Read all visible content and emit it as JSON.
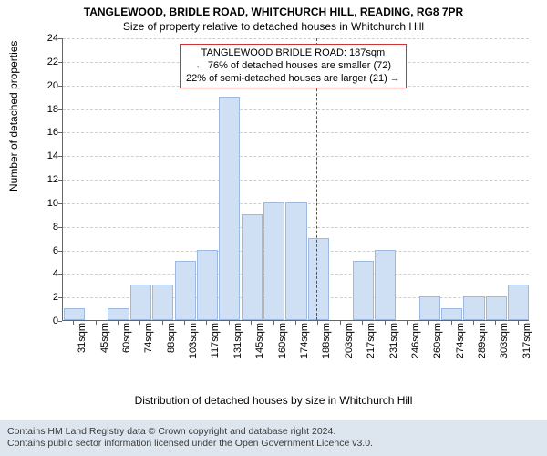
{
  "title": "TANGLEWOOD, BRIDLE ROAD, WHITCHURCH HILL, READING, RG8 7PR",
  "subtitle": "Size of property relative to detached houses in Whitchurch Hill",
  "ylabel": "Number of detached properties",
  "xlabel": "Distribution of detached houses by size in Whitchurch Hill",
  "chart": {
    "type": "histogram",
    "ylim": [
      0,
      24
    ],
    "ytick_step": 2,
    "yticks": [
      0,
      2,
      4,
      6,
      8,
      10,
      12,
      14,
      16,
      18,
      20,
      22,
      24
    ],
    "xticks": [
      "31sqm",
      "45sqm",
      "60sqm",
      "74sqm",
      "88sqm",
      "103sqm",
      "117sqm",
      "131sqm",
      "145sqm",
      "160sqm",
      "174sqm",
      "188sqm",
      "203sqm",
      "217sqm",
      "231sqm",
      "246sqm",
      "260sqm",
      "274sqm",
      "289sqm",
      "303sqm",
      "317sqm"
    ],
    "values": [
      1,
      0,
      1,
      3,
      3,
      5,
      6,
      19,
      9,
      10,
      10,
      7,
      0,
      5,
      6,
      0,
      2,
      1,
      2,
      2,
      3
    ],
    "bar_fill": "#d0e0f4",
    "bar_stroke": "#9fb8de",
    "grid_color": "#cfcfcf",
    "axis_color": "#666666",
    "background_color": "#ffffff",
    "bar_width_ratio": 0.95,
    "label_fontsize": 11,
    "title_fontsize": 12
  },
  "reference": {
    "value_sqm": 187,
    "line_color": "#ee1111",
    "callout_border": "#cc3333",
    "lines": [
      "TANGLEWOOD BRIDLE ROAD: 187sqm",
      "← 76% of detached houses are smaller (72)",
      "22% of semi-detached houses are larger (21) →"
    ]
  },
  "footer": {
    "line1": "Contains HM Land Registry data © Crown copyright and database right 2024.",
    "line2": "Contains public sector information licensed under the Open Government Licence v3.0.",
    "bg": "#dde6ee",
    "color": "#3b3b3b"
  }
}
